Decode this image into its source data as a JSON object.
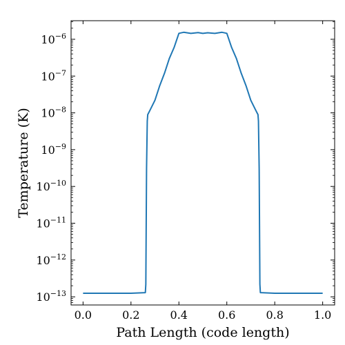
{
  "chart_data": {
    "type": "line",
    "title": "",
    "xlabel": "Path Length  (code length)",
    "ylabel": "Temperature  (K)",
    "xlim": [
      -0.05,
      1.05
    ],
    "ylim": [
      6e-14,
      3.2e-06
    ],
    "yscale": "log",
    "grid": false,
    "legend": "none",
    "color": "#1f77b4",
    "x_ticks": [
      {
        "value": 0.0,
        "label": "0.0"
      },
      {
        "value": 0.2,
        "label": "0.2"
      },
      {
        "value": 0.4,
        "label": "0.4"
      },
      {
        "value": 0.6,
        "label": "0.6"
      },
      {
        "value": 0.8,
        "label": "0.8"
      },
      {
        "value": 1.0,
        "label": "1.0"
      }
    ],
    "y_ticks": [
      {
        "value": 1e-13,
        "base": "10",
        "exp": "−13"
      },
      {
        "value": 1e-12,
        "base": "10",
        "exp": "−12"
      },
      {
        "value": 1e-11,
        "base": "10",
        "exp": "−11"
      },
      {
        "value": 1e-10,
        "base": "10",
        "exp": "−10"
      },
      {
        "value": 1e-09,
        "base": "10",
        "exp": "−9"
      },
      {
        "value": 1e-08,
        "base": "10",
        "exp": "−8"
      },
      {
        "value": 1e-07,
        "base": "10",
        "exp": "−7"
      },
      {
        "value": 1e-06,
        "base": "10",
        "exp": "−6"
      }
    ],
    "series": [
      {
        "x": [
          0.0,
          0.1,
          0.2,
          0.26,
          0.262,
          0.265,
          0.268,
          0.27,
          0.272,
          0.28,
          0.3,
          0.32,
          0.34,
          0.36,
          0.38,
          0.4,
          0.42,
          0.45,
          0.48,
          0.5,
          0.52,
          0.55,
          0.58,
          0.6,
          0.62,
          0.64,
          0.66,
          0.68,
          0.7,
          0.72,
          0.728,
          0.73,
          0.732,
          0.735,
          0.738,
          0.74,
          0.8,
          0.9,
          1.0
        ],
        "y": [
          1.25e-13,
          1.25e-13,
          1.25e-13,
          1.3e-13,
          2.2e-13,
          3e-10,
          6e-09,
          9e-09,
          9.5e-09,
          1.2e-08,
          2.2e-08,
          5.5e-08,
          1.2e-07,
          3e-07,
          6e-07,
          1.45e-06,
          1.55e-06,
          1.45e-06,
          1.52e-06,
          1.45e-06,
          1.5e-06,
          1.45e-06,
          1.55e-06,
          1.45e-06,
          6e-07,
          3e-07,
          1.2e-07,
          5.5e-08,
          2.2e-08,
          1.2e-08,
          9.5e-09,
          9e-09,
          6e-09,
          3e-10,
          2.2e-13,
          1.3e-13,
          1.25e-13,
          1.25e-13,
          1.25e-13
        ]
      }
    ]
  }
}
